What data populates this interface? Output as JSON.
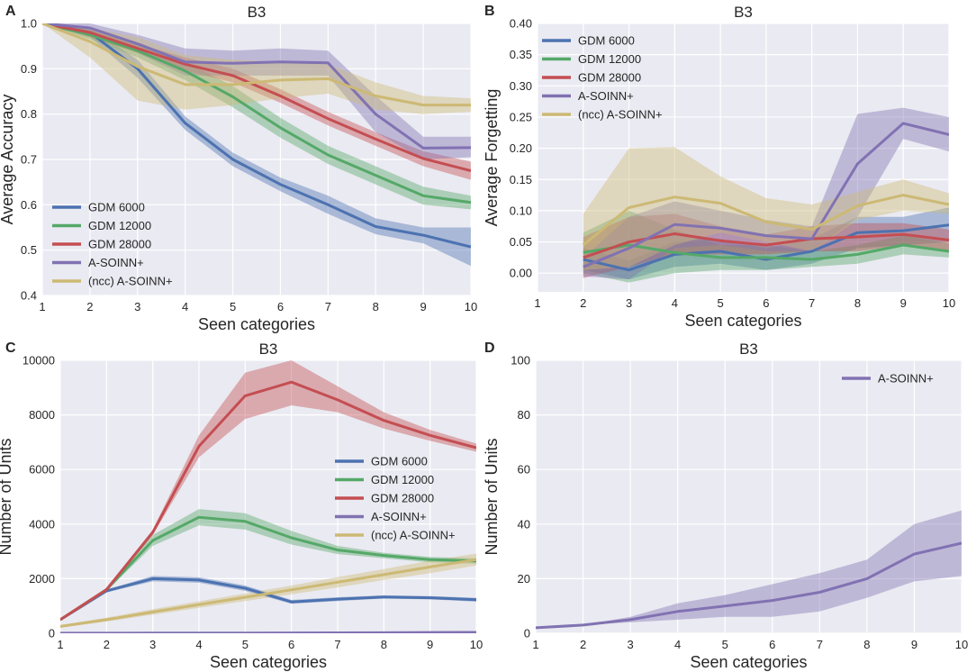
{
  "chart_data": [
    {
      "panel_label": "A",
      "type": "line",
      "title": "B3",
      "xlabel": "Seen categories",
      "ylabel": "Average Accuracy",
      "xlim": [
        1,
        10
      ],
      "ylim": [
        0.4,
        1.0
      ],
      "xticks": [
        1,
        2,
        3,
        4,
        5,
        6,
        7,
        8,
        9,
        10
      ],
      "yticks": [
        0.4,
        0.5,
        0.6,
        0.7,
        0.8,
        0.9,
        1.0
      ],
      "ytick_labels": [
        "0.4",
        "0.5",
        "0.6",
        "0.7",
        "0.8",
        "0.9",
        "1.0"
      ],
      "legend_position": "lower-left",
      "series": [
        {
          "name": "GDM 6000",
          "color": "#4c72b0",
          "x": [
            1,
            2,
            3,
            4,
            5,
            6,
            7,
            8,
            9,
            10
          ],
          "values": [
            1.0,
            0.98,
            0.9,
            0.78,
            0.7,
            0.645,
            0.6,
            0.552,
            0.533,
            0.507
          ],
          "lower": [
            1.0,
            0.97,
            0.88,
            0.765,
            0.685,
            0.63,
            0.58,
            0.535,
            0.515,
            0.465
          ],
          "upper": [
            1.0,
            0.99,
            0.92,
            0.795,
            0.715,
            0.66,
            0.62,
            0.57,
            0.55,
            0.55
          ]
        },
        {
          "name": "GDM 12000",
          "color": "#55a868",
          "x": [
            1,
            2,
            3,
            4,
            5,
            6,
            7,
            8,
            9,
            10
          ],
          "values": [
            1.0,
            0.975,
            0.94,
            0.895,
            0.838,
            0.77,
            0.71,
            0.665,
            0.62,
            0.605
          ],
          "lower": [
            1.0,
            0.965,
            0.925,
            0.875,
            0.815,
            0.748,
            0.69,
            0.645,
            0.6,
            0.59
          ],
          "upper": [
            1.0,
            0.985,
            0.955,
            0.915,
            0.862,
            0.792,
            0.73,
            0.685,
            0.64,
            0.62
          ]
        },
        {
          "name": "GDM 28000",
          "color": "#c44e52",
          "x": [
            1,
            2,
            3,
            4,
            5,
            6,
            7,
            8,
            9,
            10
          ],
          "values": [
            1.0,
            0.98,
            0.945,
            0.91,
            0.885,
            0.84,
            0.79,
            0.745,
            0.702,
            0.675
          ],
          "lower": [
            1.0,
            0.97,
            0.935,
            0.895,
            0.87,
            0.825,
            0.775,
            0.73,
            0.685,
            0.655
          ],
          "upper": [
            1.0,
            0.99,
            0.955,
            0.925,
            0.9,
            0.855,
            0.805,
            0.76,
            0.718,
            0.695
          ]
        },
        {
          "name": "A-SOINN+",
          "color": "#8172b2",
          "x": [
            1,
            2,
            3,
            4,
            5,
            6,
            7,
            8,
            9,
            10
          ],
          "values": [
            1.0,
            0.99,
            0.955,
            0.915,
            0.912,
            0.915,
            0.913,
            0.8,
            0.725,
            0.726
          ],
          "lower": [
            1.0,
            0.98,
            0.935,
            0.885,
            0.885,
            0.885,
            0.885,
            0.76,
            0.7,
            0.705
          ],
          "upper": [
            1.0,
            1.0,
            0.975,
            0.945,
            0.94,
            0.945,
            0.94,
            0.84,
            0.75,
            0.75
          ]
        },
        {
          "name": "(ncc) A-SOINN+",
          "color": "#ccb974",
          "x": [
            1,
            2,
            3,
            4,
            5,
            6,
            7,
            8,
            9,
            10
          ],
          "values": [
            1.0,
            0.96,
            0.905,
            0.865,
            0.865,
            0.875,
            0.878,
            0.84,
            0.82,
            0.82
          ],
          "lower": [
            1.0,
            0.925,
            0.83,
            0.81,
            0.82,
            0.835,
            0.845,
            0.81,
            0.8,
            0.805
          ],
          "upper": [
            1.0,
            0.99,
            0.97,
            0.93,
            0.92,
            0.915,
            0.91,
            0.87,
            0.84,
            0.835
          ]
        }
      ]
    },
    {
      "panel_label": "B",
      "type": "line",
      "title": "B3",
      "xlabel": "Seen categories",
      "ylabel": "Average Forgetting",
      "xlim": [
        1,
        10
      ],
      "ylim": [
        -0.03,
        0.4
      ],
      "xticks": [
        1,
        2,
        3,
        4,
        5,
        6,
        7,
        8,
        9,
        10
      ],
      "yticks": [
        0.0,
        0.05,
        0.1,
        0.15,
        0.2,
        0.25,
        0.3,
        0.35,
        0.4
      ],
      "ytick_labels": [
        "0.00",
        "0.05",
        "0.10",
        "0.15",
        "0.20",
        "0.25",
        "0.30",
        "0.35",
        "0.40"
      ],
      "legend_position": "upper-left",
      "series": [
        {
          "name": "GDM 6000",
          "color": "#4c72b0",
          "x": [
            2,
            3,
            4,
            5,
            6,
            7,
            8,
            9,
            10
          ],
          "values": [
            0.022,
            0.005,
            0.03,
            0.035,
            0.022,
            0.035,
            0.065,
            0.068,
            0.077
          ],
          "lower": [
            0.005,
            -0.01,
            0.01,
            0.015,
            0.005,
            0.015,
            0.04,
            0.045,
            0.05
          ],
          "upper": [
            0.04,
            0.02,
            0.05,
            0.055,
            0.04,
            0.055,
            0.09,
            0.09,
            0.105
          ]
        },
        {
          "name": "GDM 12000",
          "color": "#55a868",
          "x": [
            2,
            3,
            4,
            5,
            6,
            7,
            8,
            9,
            10
          ],
          "values": [
            0.033,
            0.045,
            0.033,
            0.025,
            0.025,
            0.022,
            0.03,
            0.045,
            0.035
          ],
          "lower": [
            0.0,
            -0.015,
            0.0,
            0.005,
            0.005,
            0.01,
            0.015,
            0.03,
            0.025
          ],
          "upper": [
            0.065,
            0.1,
            0.07,
            0.045,
            0.045,
            0.035,
            0.045,
            0.06,
            0.048
          ]
        },
        {
          "name": "GDM 28000",
          "color": "#c44e52",
          "x": [
            2,
            3,
            4,
            5,
            6,
            7,
            8,
            9,
            10
          ],
          "values": [
            0.025,
            0.05,
            0.063,
            0.052,
            0.045,
            0.055,
            0.058,
            0.062,
            0.053
          ],
          "lower": [
            -0.008,
            0.01,
            0.03,
            0.03,
            0.03,
            0.035,
            0.035,
            0.045,
            0.035
          ],
          "upper": [
            0.058,
            0.09,
            0.095,
            0.075,
            0.062,
            0.075,
            0.08,
            0.08,
            0.07
          ]
        },
        {
          "name": "A-SOINN+",
          "color": "#8172b2",
          "x": [
            2,
            3,
            4,
            5,
            6,
            7,
            8,
            9,
            10
          ],
          "values": [
            0.01,
            0.04,
            0.078,
            0.072,
            0.06,
            0.055,
            0.175,
            0.24,
            0.222
          ],
          "lower": [
            -0.005,
            -0.01,
            0.04,
            0.045,
            0.035,
            0.035,
            0.09,
            0.215,
            0.195
          ],
          "upper": [
            0.025,
            0.09,
            0.115,
            0.1,
            0.085,
            0.075,
            0.255,
            0.265,
            0.25
          ]
        },
        {
          "name": "(ncc) A-SOINN+",
          "color": "#ccb974",
          "x": [
            2,
            3,
            4,
            5,
            6,
            7,
            8,
            9,
            10
          ],
          "values": [
            0.045,
            0.105,
            0.122,
            0.112,
            0.082,
            0.07,
            0.108,
            0.125,
            0.11
          ],
          "lower": [
            0.005,
            0.01,
            0.045,
            0.065,
            0.05,
            0.035,
            0.085,
            0.1,
            0.095
          ],
          "upper": [
            0.095,
            0.2,
            0.202,
            0.155,
            0.12,
            0.11,
            0.13,
            0.15,
            0.128
          ]
        }
      ]
    },
    {
      "panel_label": "C",
      "type": "line",
      "title": "B3",
      "xlabel": "Seen categories",
      "ylabel": "Number of Units",
      "xlim": [
        1,
        10
      ],
      "ylim": [
        0,
        10000
      ],
      "xticks": [
        1,
        2,
        3,
        4,
        5,
        6,
        7,
        8,
        9,
        10
      ],
      "yticks": [
        0,
        2000,
        4000,
        6000,
        8000,
        10000
      ],
      "ytick_labels": [
        "0",
        "2000",
        "4000",
        "6000",
        "8000",
        "10000"
      ],
      "legend_position": "center-right",
      "series": [
        {
          "name": "GDM 6000",
          "color": "#4c72b0",
          "x": [
            1,
            2,
            3,
            4,
            5,
            6,
            7,
            8,
            9,
            10
          ],
          "values": [
            500,
            1550,
            2000,
            1950,
            1650,
            1150,
            1250,
            1330,
            1300,
            1230
          ],
          "lower": [
            450,
            1500,
            1900,
            1850,
            1550,
            1080,
            1180,
            1270,
            1240,
            1160
          ],
          "upper": [
            550,
            1600,
            2100,
            2050,
            1750,
            1220,
            1320,
            1390,
            1360,
            1300
          ]
        },
        {
          "name": "GDM 12000",
          "color": "#55a868",
          "x": [
            1,
            2,
            3,
            4,
            5,
            6,
            7,
            8,
            9,
            10
          ],
          "values": [
            500,
            1600,
            3400,
            4250,
            4100,
            3500,
            3050,
            2850,
            2700,
            2650
          ],
          "lower": [
            450,
            1550,
            3200,
            3950,
            3800,
            3250,
            2900,
            2750,
            2600,
            2550
          ],
          "upper": [
            550,
            1650,
            3600,
            4550,
            4400,
            3750,
            3200,
            2950,
            2800,
            2750
          ]
        },
        {
          "name": "GDM 28000",
          "color": "#c44e52",
          "x": [
            1,
            2,
            3,
            4,
            5,
            6,
            7,
            8,
            9,
            10
          ],
          "values": [
            500,
            1600,
            3700,
            6850,
            8700,
            9200,
            8550,
            7800,
            7250,
            6800
          ],
          "lower": [
            450,
            1550,
            3600,
            6450,
            7850,
            8350,
            8100,
            7500,
            7050,
            6650
          ],
          "upper": [
            550,
            1650,
            3800,
            7250,
            9550,
            10000,
            9050,
            8100,
            7450,
            6950
          ]
        },
        {
          "name": "A-SOINN+",
          "color": "#8172b2",
          "x": [
            1,
            2,
            3,
            4,
            5,
            6,
            7,
            8,
            9,
            10
          ],
          "values": [
            2,
            3,
            5,
            8,
            10,
            12,
            15,
            20,
            29,
            33
          ],
          "lower": [
            2,
            3,
            4,
            5,
            6,
            6,
            8,
            13,
            19,
            21
          ],
          "upper": [
            2,
            3,
            6,
            11,
            14,
            18,
            22,
            27,
            40,
            45
          ]
        },
        {
          "name": "(ncc) A-SOINN+",
          "color": "#ccb974",
          "x": [
            1,
            2,
            3,
            4,
            5,
            6,
            7,
            8,
            9,
            10
          ],
          "values": [
            250,
            500,
            780,
            1050,
            1320,
            1590,
            1870,
            2150,
            2430,
            2700
          ],
          "lower": [
            200,
            430,
            680,
            930,
            1180,
            1430,
            1680,
            1950,
            2200,
            2480
          ],
          "upper": [
            300,
            570,
            880,
            1170,
            1460,
            1750,
            2060,
            2350,
            2660,
            2920
          ]
        }
      ]
    },
    {
      "panel_label": "D",
      "type": "line",
      "title": "B3",
      "xlabel": "Seen categories",
      "ylabel": "Number of Units",
      "xlim": [
        1,
        10
      ],
      "ylim": [
        0,
        100
      ],
      "xticks": [
        1,
        2,
        3,
        4,
        5,
        6,
        7,
        8,
        9,
        10
      ],
      "yticks": [
        0,
        20,
        40,
        60,
        80,
        100
      ],
      "ytick_labels": [
        "0",
        "20",
        "40",
        "60",
        "80",
        "100"
      ],
      "legend_position": "upper-right",
      "series": [
        {
          "name": "A-SOINN+",
          "color": "#8172b2",
          "x": [
            1,
            2,
            3,
            4,
            5,
            6,
            7,
            8,
            9,
            10
          ],
          "values": [
            2,
            3,
            5,
            8,
            10,
            12,
            15,
            20,
            29,
            33
          ],
          "lower": [
            2,
            3,
            4,
            5,
            6,
            6,
            8,
            13,
            19,
            21
          ],
          "upper": [
            2,
            3,
            6,
            11,
            14,
            18,
            22,
            27,
            40,
            45
          ]
        }
      ]
    }
  ]
}
